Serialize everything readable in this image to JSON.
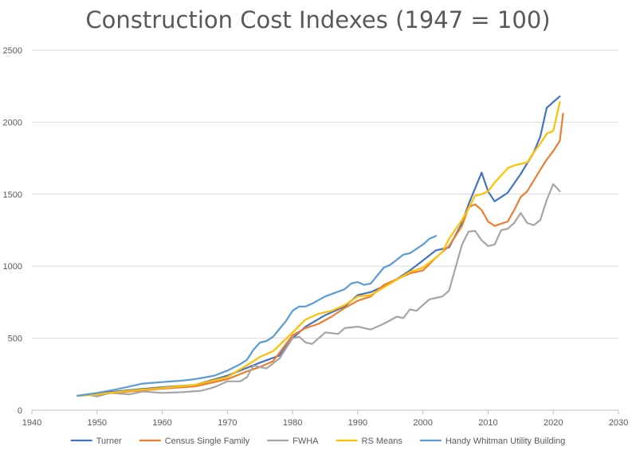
{
  "chart_data": {
    "type": "line",
    "title": "Construction Cost Indexes (1947 = 100)",
    "xlabel": "",
    "ylabel": "",
    "xlim": [
      1940,
      2030
    ],
    "ylim": [
      0,
      2500
    ],
    "x_ticks": [
      1940,
      1950,
      1960,
      1970,
      1980,
      1990,
      2000,
      2010,
      2020,
      2030
    ],
    "y_ticks": [
      0,
      500,
      1000,
      1500,
      2000,
      2500
    ],
    "grid": "horizontal",
    "legend_position": "bottom",
    "series": [
      {
        "name": "Turner",
        "color": "#4472C4",
        "points": [
          [
            1947,
            100
          ],
          [
            1950,
            115
          ],
          [
            1955,
            140
          ],
          [
            1960,
            160
          ],
          [
            1965,
            175
          ],
          [
            1970,
            240
          ],
          [
            1975,
            330
          ],
          [
            1978,
            380
          ],
          [
            1980,
            500
          ],
          [
            1982,
            580
          ],
          [
            1985,
            660
          ],
          [
            1988,
            720
          ],
          [
            1990,
            800
          ],
          [
            1992,
            820
          ],
          [
            1995,
            880
          ],
          [
            1998,
            970
          ],
          [
            2000,
            1040
          ],
          [
            2002,
            1110
          ],
          [
            2004,
            1130
          ],
          [
            2006,
            1300
          ],
          [
            2007,
            1430
          ],
          [
            2008,
            1540
          ],
          [
            2009,
            1650
          ],
          [
            2010,
            1520
          ],
          [
            2011,
            1450
          ],
          [
            2013,
            1510
          ],
          [
            2015,
            1640
          ],
          [
            2017,
            1790
          ],
          [
            2018,
            1900
          ],
          [
            2019,
            2100
          ],
          [
            2021,
            2180
          ]
        ]
      },
      {
        "name": "Census Single Family",
        "color": "#ED7D31",
        "points": [
          [
            1947,
            100
          ],
          [
            1950,
            110
          ],
          [
            1955,
            130
          ],
          [
            1960,
            150
          ],
          [
            1965,
            165
          ],
          [
            1970,
            215
          ],
          [
            1973,
            270
          ],
          [
            1975,
            300
          ],
          [
            1977,
            340
          ],
          [
            1980,
            520
          ],
          [
            1982,
            570
          ],
          [
            1984,
            600
          ],
          [
            1986,
            650
          ],
          [
            1988,
            710
          ],
          [
            1990,
            760
          ],
          [
            1992,
            790
          ],
          [
            1994,
            870
          ],
          [
            1996,
            910
          ],
          [
            1998,
            950
          ],
          [
            2000,
            970
          ],
          [
            2002,
            1060
          ],
          [
            2004,
            1140
          ],
          [
            2006,
            1280
          ],
          [
            2007,
            1410
          ],
          [
            2008,
            1430
          ],
          [
            2009,
            1390
          ],
          [
            2010,
            1310
          ],
          [
            2011,
            1280
          ],
          [
            2013,
            1310
          ],
          [
            2014,
            1390
          ],
          [
            2015,
            1480
          ],
          [
            2016,
            1520
          ],
          [
            2018,
            1670
          ],
          [
            2019,
            1740
          ],
          [
            2020,
            1800
          ],
          [
            2021,
            1870
          ],
          [
            2021.5,
            2060
          ]
        ]
      },
      {
        "name": "FWHA",
        "color": "#A5A5A5",
        "points": [
          [
            1947,
            100
          ],
          [
            1949,
            105
          ],
          [
            1950,
            95
          ],
          [
            1952,
            120
          ],
          [
            1955,
            110
          ],
          [
            1957,
            130
          ],
          [
            1960,
            120
          ],
          [
            1963,
            125
          ],
          [
            1966,
            135
          ],
          [
            1968,
            160
          ],
          [
            1970,
            200
          ],
          [
            1972,
            200
          ],
          [
            1973,
            230
          ],
          [
            1974,
            310
          ],
          [
            1975,
            300
          ],
          [
            1976,
            290
          ],
          [
            1978,
            360
          ],
          [
            1980,
            500
          ],
          [
            1981,
            510
          ],
          [
            1982,
            470
          ],
          [
            1983,
            460
          ],
          [
            1985,
            540
          ],
          [
            1987,
            530
          ],
          [
            1988,
            570
          ],
          [
            1990,
            580
          ],
          [
            1992,
            560
          ],
          [
            1994,
            600
          ],
          [
            1996,
            650
          ],
          [
            1997,
            640
          ],
          [
            1998,
            700
          ],
          [
            1999,
            690
          ],
          [
            2001,
            770
          ],
          [
            2002,
            780
          ],
          [
            2003,
            790
          ],
          [
            2004,
            830
          ],
          [
            2006,
            1150
          ],
          [
            2007,
            1240
          ],
          [
            2008,
            1245
          ],
          [
            2009,
            1180
          ],
          [
            2010,
            1140
          ],
          [
            2011,
            1150
          ],
          [
            2012,
            1250
          ],
          [
            2013,
            1260
          ],
          [
            2014,
            1300
          ],
          [
            2015,
            1370
          ],
          [
            2016,
            1300
          ],
          [
            2017,
            1285
          ],
          [
            2018,
            1320
          ],
          [
            2019,
            1460
          ],
          [
            2020,
            1570
          ],
          [
            2021,
            1520
          ]
        ]
      },
      {
        "name": "RS Means",
        "color": "#FFC000",
        "points": [
          [
            1947,
            100
          ],
          [
            1950,
            110
          ],
          [
            1955,
            135
          ],
          [
            1960,
            155
          ],
          [
            1965,
            175
          ],
          [
            1970,
            230
          ],
          [
            1974,
            340
          ],
          [
            1975,
            370
          ],
          [
            1977,
            410
          ],
          [
            1980,
            540
          ],
          [
            1982,
            630
          ],
          [
            1984,
            670
          ],
          [
            1986,
            690
          ],
          [
            1988,
            730
          ],
          [
            1990,
            790
          ],
          [
            1992,
            800
          ],
          [
            1995,
            880
          ],
          [
            1998,
            960
          ],
          [
            2000,
            990
          ],
          [
            2002,
            1060
          ],
          [
            2003,
            1100
          ],
          [
            2004,
            1190
          ],
          [
            2006,
            1320
          ],
          [
            2007,
            1400
          ],
          [
            2008,
            1490
          ],
          [
            2009,
            1500
          ],
          [
            2010,
            1520
          ],
          [
            2011,
            1580
          ],
          [
            2013,
            1680
          ],
          [
            2014,
            1700
          ],
          [
            2016,
            1720
          ],
          [
            2017,
            1790
          ],
          [
            2018,
            1850
          ],
          [
            2019,
            1920
          ],
          [
            2020,
            1940
          ],
          [
            2021,
            2140
          ]
        ]
      },
      {
        "name": "Handy Whitman Utility Building",
        "color": "#5B9BD5",
        "points": [
          [
            1947,
            100
          ],
          [
            1950,
            120
          ],
          [
            1953,
            145
          ],
          [
            1955,
            165
          ],
          [
            1957,
            185
          ],
          [
            1960,
            195
          ],
          [
            1963,
            205
          ],
          [
            1965,
            215
          ],
          [
            1968,
            240
          ],
          [
            1970,
            275
          ],
          [
            1972,
            320
          ],
          [
            1973,
            350
          ],
          [
            1974,
            420
          ],
          [
            1975,
            470
          ],
          [
            1976,
            480
          ],
          [
            1977,
            510
          ],
          [
            1979,
            620
          ],
          [
            1980,
            690
          ],
          [
            1981,
            720
          ],
          [
            1982,
            720
          ],
          [
            1983,
            740
          ],
          [
            1985,
            790
          ],
          [
            1988,
            840
          ],
          [
            1989,
            880
          ],
          [
            1990,
            890
          ],
          [
            1991,
            870
          ],
          [
            1992,
            880
          ],
          [
            1994,
            990
          ],
          [
            1995,
            1010
          ],
          [
            1997,
            1080
          ],
          [
            1998,
            1090
          ],
          [
            1999,
            1120
          ],
          [
            2000,
            1150
          ],
          [
            2001,
            1190
          ],
          [
            2002,
            1210
          ]
        ]
      }
    ]
  }
}
